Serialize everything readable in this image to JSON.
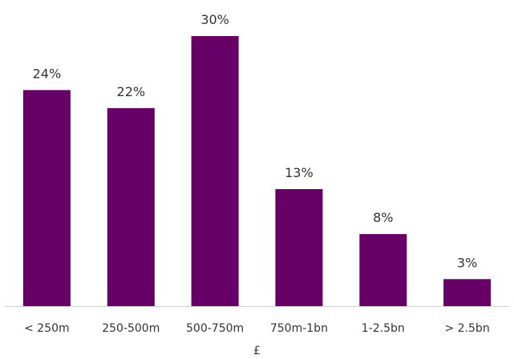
{
  "chart_data": {
    "type": "bar",
    "categories": [
      "< 250m",
      "250-500m",
      "500-750m",
      "750m-1bn",
      "1-2.5bn",
      "> 2.5bn"
    ],
    "values": [
      24,
      22,
      30,
      13,
      8,
      3
    ],
    "value_labels": [
      "24%",
      "22%",
      "30%",
      "13%",
      "8%",
      "3%"
    ],
    "unit": "%",
    "xlabel": "£",
    "ylabel": "",
    "ylim": [
      0,
      30
    ],
    "grid": false,
    "legend": "none",
    "colors": {
      "bar": "#660066",
      "axis": "#d0d0d0",
      "text": "#333333"
    }
  }
}
